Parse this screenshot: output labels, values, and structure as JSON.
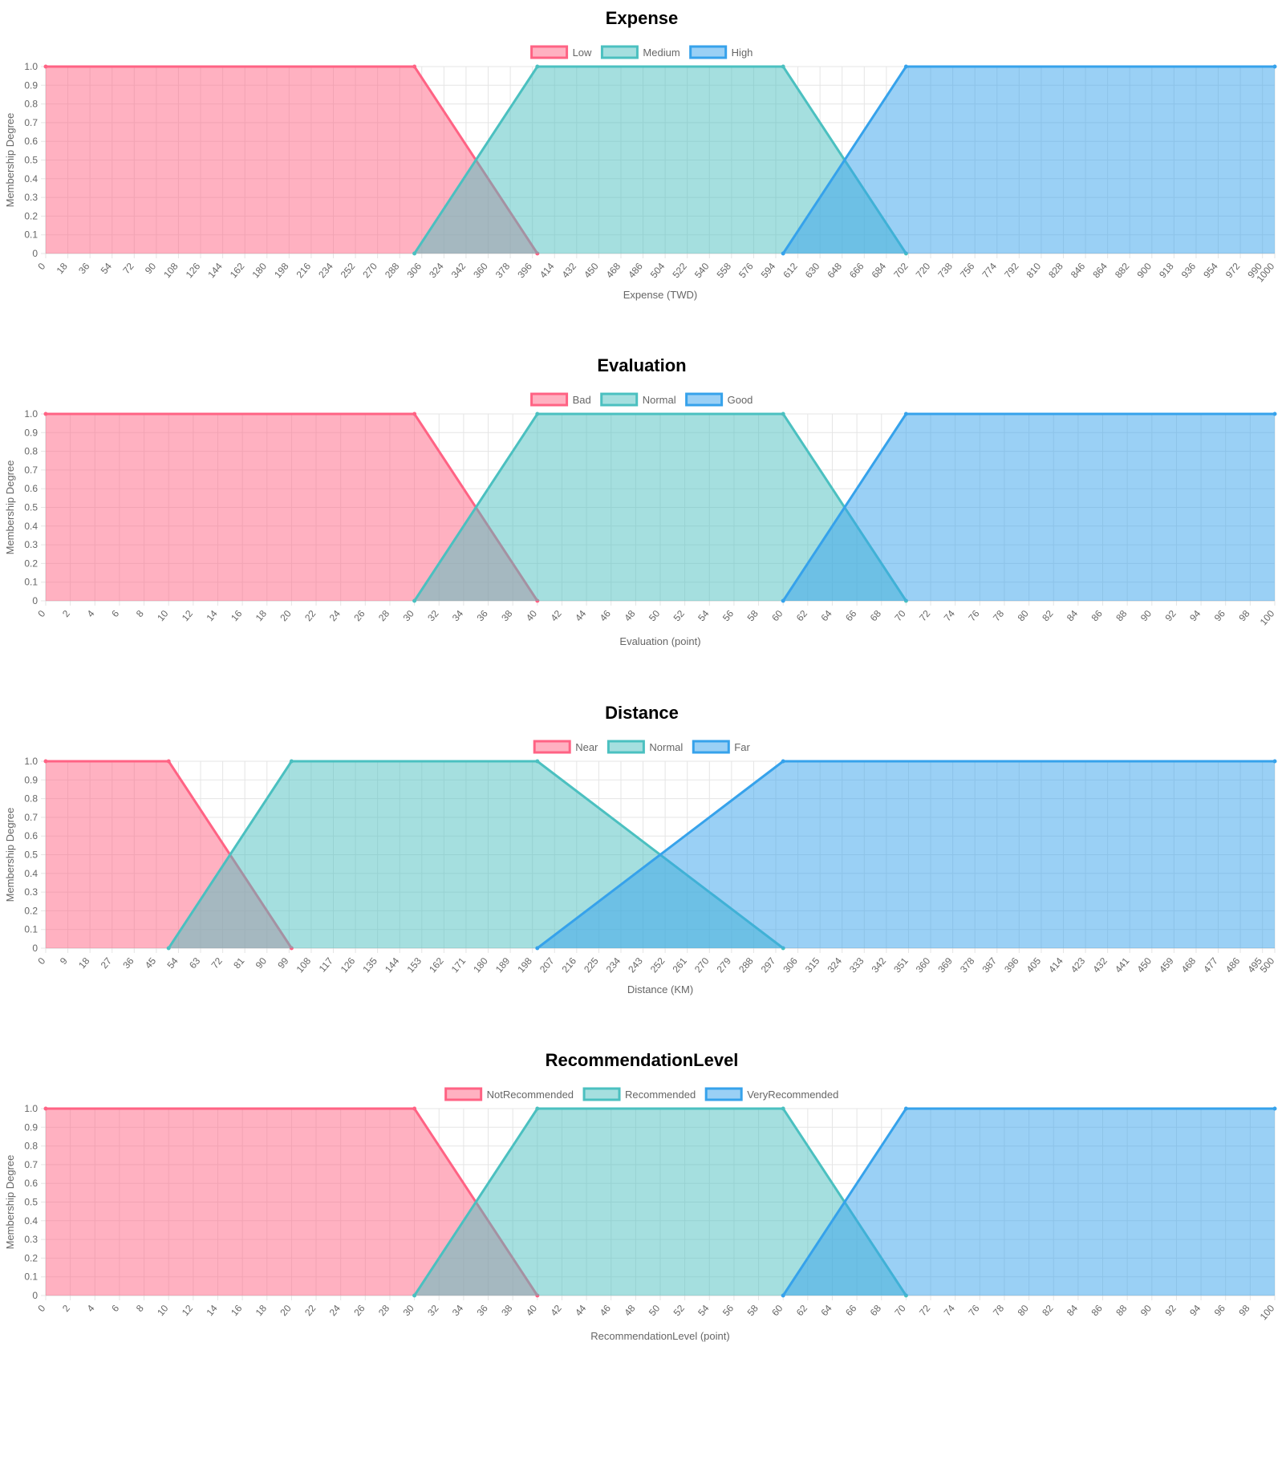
{
  "colors": {
    "red": {
      "stroke": "#ff6384",
      "fill": "#ff6384"
    },
    "teal": {
      "stroke": "#4bc0c0",
      "fill": "#4bc0c0"
    },
    "blue": {
      "stroke": "#36a2eb",
      "fill": "#36a2eb"
    }
  },
  "chart_data": [
    {
      "type": "area",
      "title": "Expense",
      "xlabel": "Expense (TWD)",
      "ylabel": "Membership Degree",
      "xlim": [
        0,
        1000
      ],
      "ylim": [
        0,
        1
      ],
      "x_tick_step": 18,
      "grid": true,
      "legend": "top",
      "series": [
        {
          "name": "Low",
          "color": "red",
          "points": [
            [
              0,
              1
            ],
            [
              300,
              1
            ],
            [
              400,
              0
            ]
          ]
        },
        {
          "name": "Medium",
          "color": "teal",
          "points": [
            [
              300,
              0
            ],
            [
              400,
              1
            ],
            [
              600,
              1
            ],
            [
              700,
              0
            ]
          ]
        },
        {
          "name": "High",
          "color": "blue",
          "points": [
            [
              600,
              0
            ],
            [
              700,
              1
            ],
            [
              1000,
              1
            ]
          ]
        }
      ]
    },
    {
      "type": "area",
      "title": "Evaluation",
      "xlabel": "Evaluation (point)",
      "ylabel": "Membership Degree",
      "xlim": [
        0,
        100
      ],
      "ylim": [
        0,
        1
      ],
      "x_tick_step": 2,
      "grid": true,
      "legend": "top",
      "series": [
        {
          "name": "Bad",
          "color": "red",
          "points": [
            [
              0,
              1
            ],
            [
              30,
              1
            ],
            [
              40,
              0
            ]
          ]
        },
        {
          "name": "Normal",
          "color": "teal",
          "points": [
            [
              30,
              0
            ],
            [
              40,
              1
            ],
            [
              60,
              1
            ],
            [
              70,
              0
            ]
          ]
        },
        {
          "name": "Good",
          "color": "blue",
          "points": [
            [
              60,
              0
            ],
            [
              70,
              1
            ],
            [
              100,
              1
            ]
          ]
        }
      ]
    },
    {
      "type": "area",
      "title": "Distance",
      "xlabel": "Distance (KM)",
      "ylabel": "Membership Degree",
      "xlim": [
        0,
        500
      ],
      "ylim": [
        0,
        1
      ],
      "x_tick_step": 9,
      "grid": true,
      "legend": "top",
      "series": [
        {
          "name": "Near",
          "color": "red",
          "points": [
            [
              0,
              1
            ],
            [
              50,
              1
            ],
            [
              100,
              0
            ]
          ]
        },
        {
          "name": "Normal",
          "color": "teal",
          "points": [
            [
              50,
              0
            ],
            [
              100,
              1
            ],
            [
              200,
              1
            ],
            [
              300,
              0
            ]
          ]
        },
        {
          "name": "Far",
          "color": "blue",
          "points": [
            [
              200,
              0
            ],
            [
              300,
              1
            ],
            [
              500,
              1
            ]
          ]
        }
      ]
    },
    {
      "type": "area",
      "title": "RecommendationLevel",
      "xlabel": "RecommendationLevel (point)",
      "ylabel": "Membership Degree",
      "xlim": [
        0,
        100
      ],
      "ylim": [
        0,
        1
      ],
      "x_tick_step": 2,
      "grid": true,
      "legend": "top",
      "series": [
        {
          "name": "NotRecommended",
          "color": "red",
          "points": [
            [
              0,
              1
            ],
            [
              30,
              1
            ],
            [
              40,
              0
            ]
          ]
        },
        {
          "name": "Recommended",
          "color": "teal",
          "points": [
            [
              30,
              0
            ],
            [
              40,
              1
            ],
            [
              60,
              1
            ],
            [
              70,
              0
            ]
          ]
        },
        {
          "name": "VeryRecommended",
          "color": "blue",
          "points": [
            [
              60,
              0
            ],
            [
              70,
              1
            ],
            [
              100,
              1
            ]
          ]
        }
      ]
    }
  ]
}
